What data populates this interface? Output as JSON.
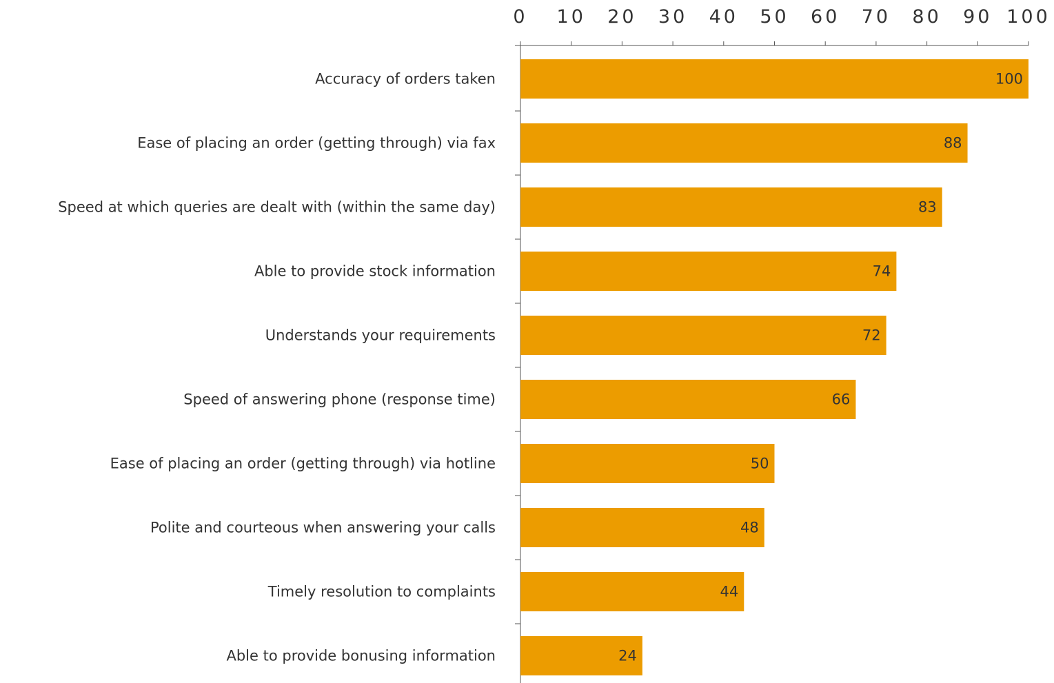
{
  "chart_data": {
    "type": "bar",
    "orientation": "horizontal",
    "title": "",
    "xlabel": "",
    "ylabel": "",
    "xlim": [
      0,
      100
    ],
    "x_ticks": [
      0,
      10,
      20,
      30,
      40,
      50,
      60,
      70,
      80,
      90,
      100
    ],
    "x_axis_position": "top",
    "grid": false,
    "legend": "none",
    "bar_color": "#EC9C00",
    "categories": [
      "Accuracy of orders taken",
      "Ease of placing an order (getting through) via fax",
      "Speed at which queries are dealt with (within the same day)",
      "Able to provide stock information",
      "Understands your requirements",
      "Speed of answering phone (response time)",
      "Ease of placing an order (getting through) via hotline",
      "Polite and courteous when answering your calls",
      "Timely resolution to complaints",
      "Able to provide bonusing information"
    ],
    "values": [
      100,
      88,
      83,
      74,
      72,
      66,
      50,
      48,
      44,
      24
    ],
    "data_labels": true
  }
}
